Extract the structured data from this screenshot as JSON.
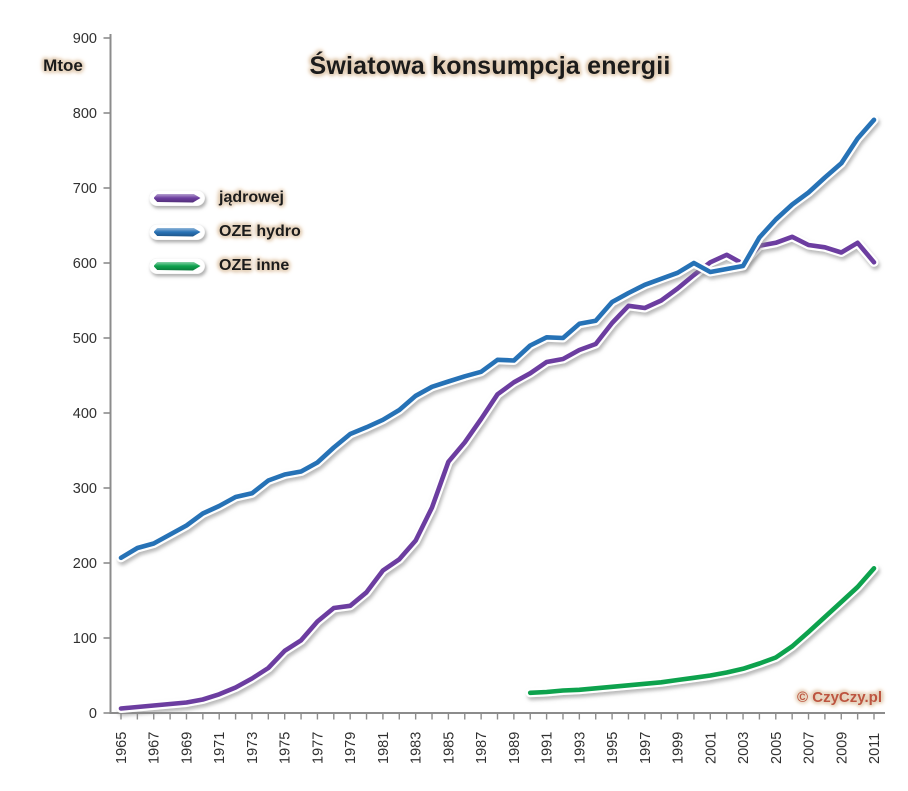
{
  "title": "Światowa konsumpcja energii",
  "watermark": "© CzyCzy.pl",
  "y_axis": {
    "unit_label": "Mtoe",
    "tick_labels": [
      "0",
      "100",
      "200",
      "300",
      "400",
      "500",
      "600",
      "700",
      "800",
      "900"
    ]
  },
  "x_axis": {
    "tick_labels": [
      "1965",
      "1967",
      "1969",
      "1971",
      "1973",
      "1975",
      "1977",
      "1979",
      "1981",
      "1983",
      "1985",
      "1987",
      "1989",
      "1991",
      "1993",
      "1995",
      "1997",
      "1999",
      "2001",
      "2003",
      "2005",
      "2007",
      "2009",
      "2011"
    ]
  },
  "legend": [
    {
      "label": "jądrowej",
      "color": "#6C3EA0"
    },
    {
      "label": "OZE hydro",
      "color": "#2872B6"
    },
    {
      "label": "OZE inne",
      "color": "#0FA24E"
    }
  ],
  "colors": {
    "axis": "#8C8C8C",
    "text": "#1b1b1b",
    "tick_text": "#303030",
    "glow": "#E0C9AE",
    "watermark": "#BD5540",
    "shadow": "#8A8A8A"
  },
  "chart_data": {
    "type": "line",
    "title": "Światowa konsumpcja energii",
    "xlabel": "",
    "ylabel": "Mtoe",
    "ylim": [
      0,
      900
    ],
    "xlim": [
      1965,
      2011
    ],
    "grid": false,
    "legend_position": "upper-left-inside",
    "x": [
      1965,
      1966,
      1967,
      1968,
      1969,
      1970,
      1971,
      1972,
      1973,
      1974,
      1975,
      1976,
      1977,
      1978,
      1979,
      1980,
      1981,
      1982,
      1983,
      1984,
      1985,
      1986,
      1987,
      1988,
      1989,
      1990,
      1991,
      1992,
      1993,
      1994,
      1995,
      1996,
      1997,
      1998,
      1999,
      2000,
      2001,
      2002,
      2003,
      2004,
      2005,
      2006,
      2007,
      2008,
      2009,
      2010,
      2011
    ],
    "series": [
      {
        "name": "jądrowej",
        "color": "#6C3EA0",
        "start_year": 1965,
        "values": [
          6,
          8,
          10,
          12,
          14,
          18,
          25,
          34,
          46,
          60,
          83,
          97,
          122,
          140,
          143,
          161,
          190,
          205,
          230,
          274,
          335,
          361,
          392,
          425,
          441,
          453,
          468,
          472,
          484,
          492,
          520,
          543,
          540,
          550,
          566,
          584,
          601,
          611,
          599,
          623,
          627,
          635,
          624,
          621,
          614,
          627,
          601
        ]
      },
      {
        "name": "OZE hydro",
        "color": "#2872B6",
        "start_year": 1965,
        "values": [
          207,
          220,
          226,
          238,
          250,
          266,
          276,
          288,
          293,
          310,
          318,
          322,
          334,
          354,
          372,
          381,
          391,
          404,
          423,
          435,
          442,
          449,
          455,
          471,
          470,
          490,
          501,
          500,
          519,
          523,
          548,
          560,
          571,
          579,
          587,
          600,
          588,
          592,
          596,
          634,
          658,
          678,
          694,
          714,
          733,
          766,
          791
        ]
      },
      {
        "name": "OZE inne",
        "color": "#0FA24E",
        "start_year": 1990,
        "values": [
          27,
          28,
          30,
          31,
          33,
          35,
          37,
          39,
          41,
          44,
          47,
          50,
          54,
          59,
          66,
          74,
          89,
          108,
          128,
          148,
          168,
          193
        ]
      }
    ]
  }
}
